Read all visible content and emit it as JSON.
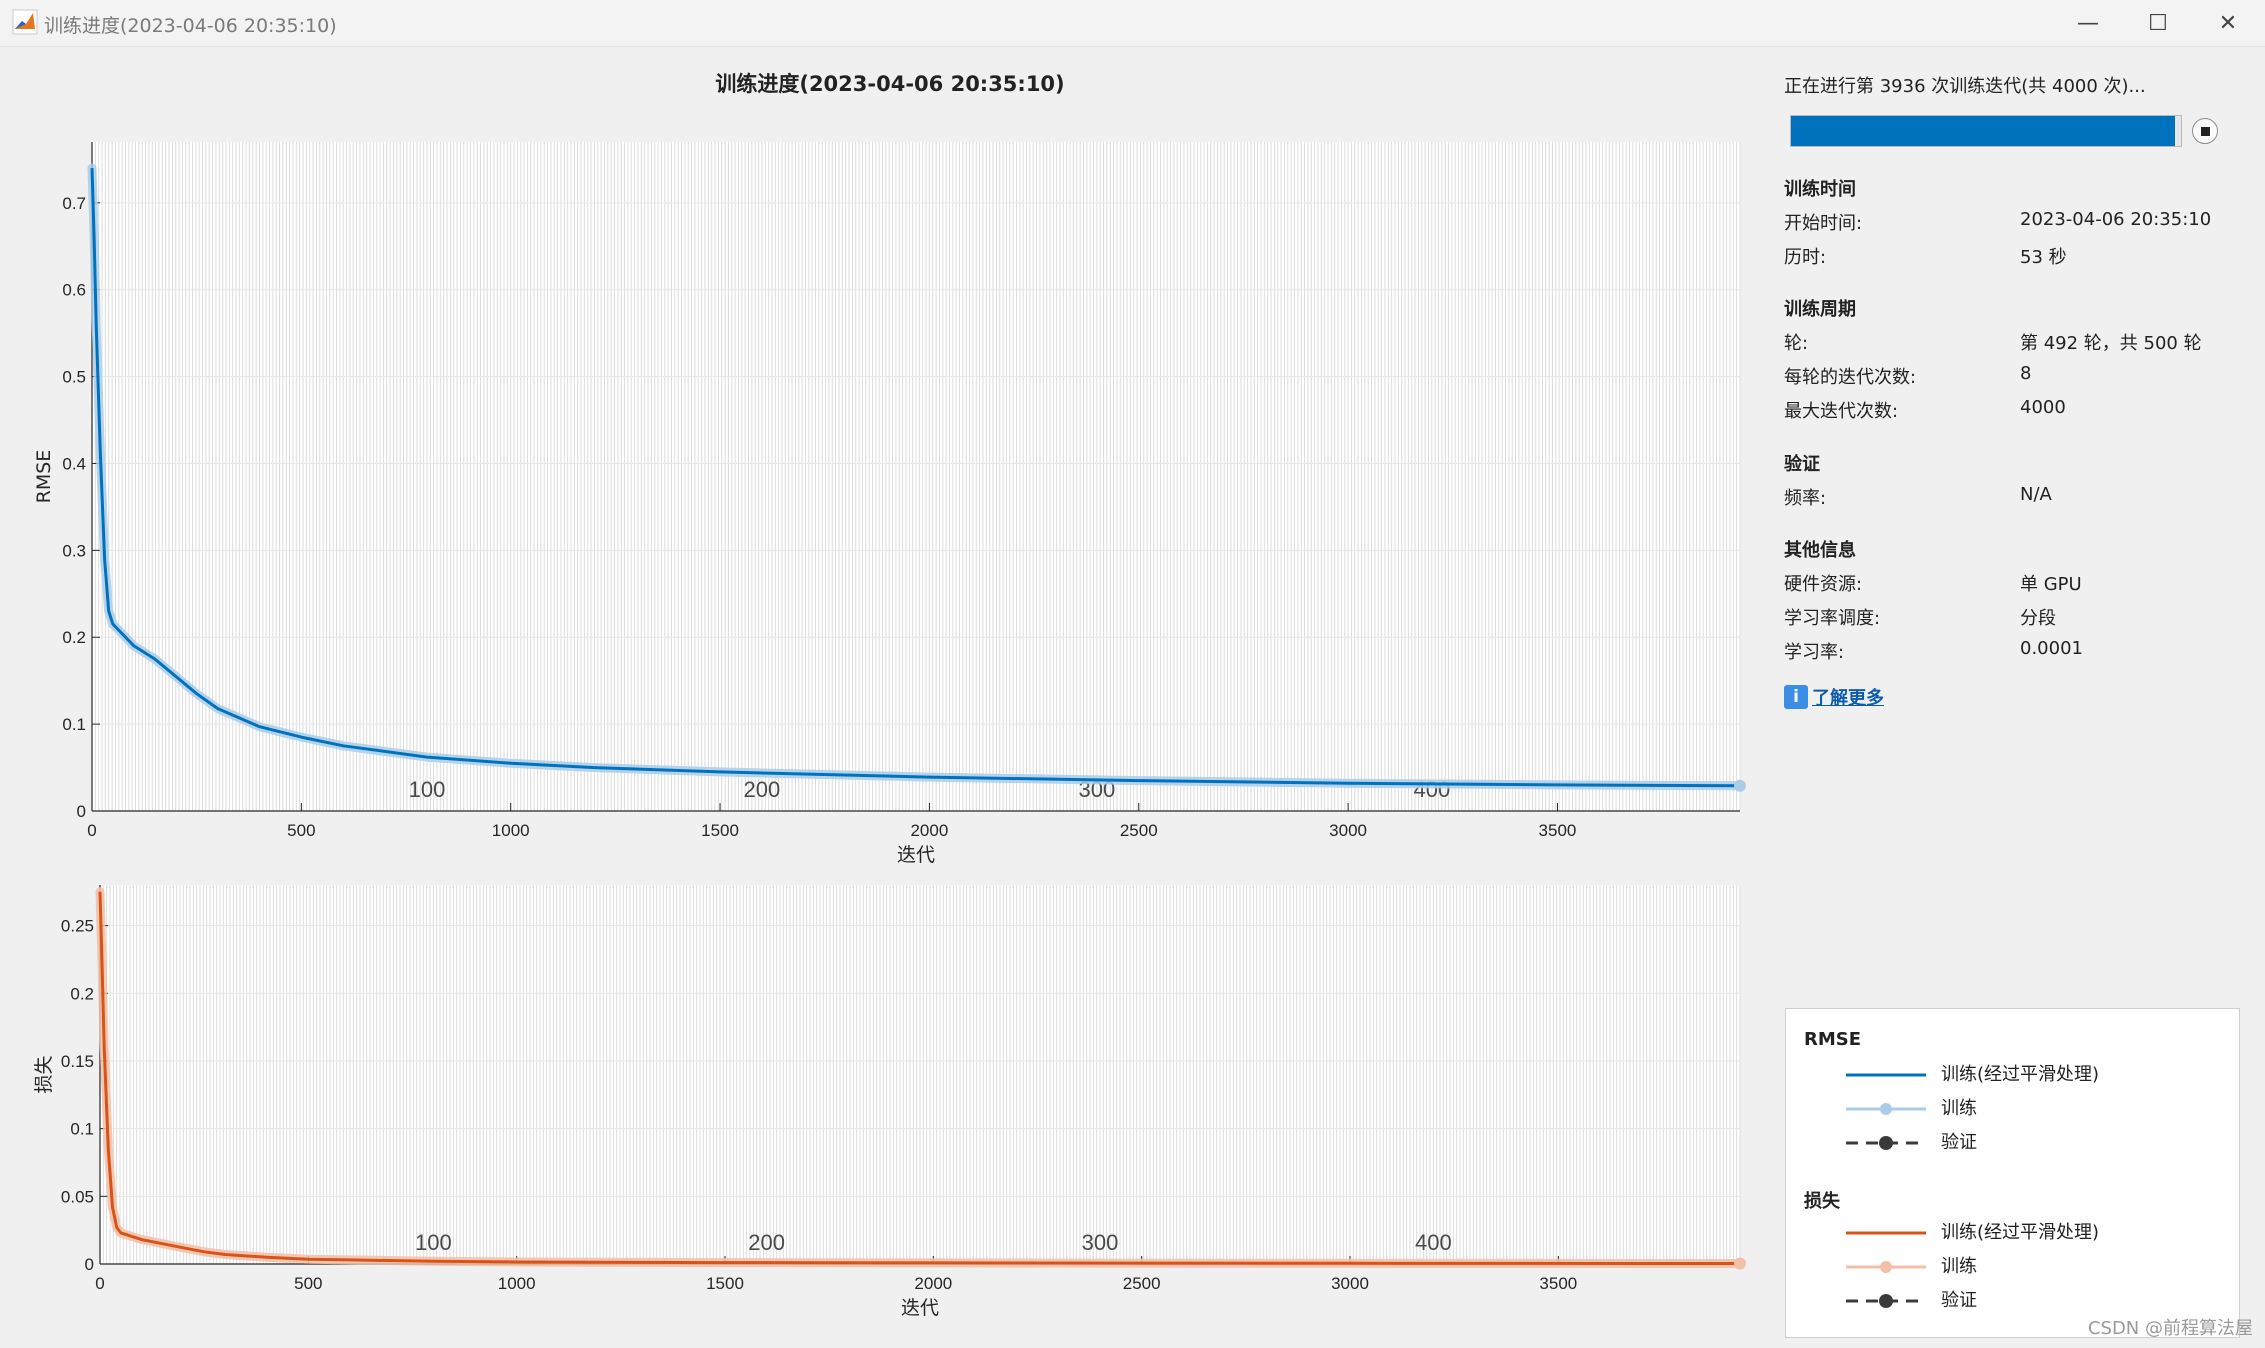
{
  "window": {
    "title": "训练进度(2023-04-06 20:35:10)",
    "min_glyph": "—",
    "max_glyph": "☐",
    "close_glyph": "✕"
  },
  "panel": {
    "progress_text": "正在进行第 3936 次训练迭代(共 4000 次)...",
    "progress_value": 0.984,
    "sections": [
      {
        "heading": "训练时间",
        "rows": [
          {
            "label": "开始时间:",
            "value": "2023-04-06 20:35:10"
          },
          {
            "label": "历时:",
            "value": "53 秒"
          }
        ]
      },
      {
        "heading": "训练周期",
        "rows": [
          {
            "label": "轮:",
            "value": "第 492 轮，共 500 轮"
          },
          {
            "label": "每轮的迭代次数:",
            "value": "8"
          },
          {
            "label": "最大迭代次数:",
            "value": "4000"
          }
        ]
      },
      {
        "heading": "验证",
        "rows": [
          {
            "label": "频率:",
            "value": "N/A"
          }
        ]
      },
      {
        "heading": "其他信息",
        "rows": [
          {
            "label": "硬件资源:",
            "value": "单 GPU"
          },
          {
            "label": "学习率调度:",
            "value": "分段"
          },
          {
            "label": "学习率:",
            "value": "0.0001"
          }
        ]
      }
    ],
    "learn_more_icon": "info-icon",
    "learn_more": "了解更多"
  },
  "legend": {
    "groups": [
      {
        "heading": "RMSE",
        "items": [
          {
            "label": "训练(经过平滑处理)",
            "style": "line",
            "color": "#0072bd"
          },
          {
            "label": "训练",
            "style": "line-marker",
            "color": "#a9cde9"
          },
          {
            "label": "验证",
            "style": "dash-marker",
            "color": "#3a3a3a"
          }
        ]
      },
      {
        "heading": "损失",
        "items": [
          {
            "label": "训练(经过平滑处理)",
            "style": "line",
            "color": "#d95319"
          },
          {
            "label": "训练",
            "style": "line-marker",
            "color": "#f2bfa7"
          },
          {
            "label": "验证",
            "style": "dash-marker",
            "color": "#3a3a3a"
          }
        ]
      }
    ]
  },
  "watermark": "CSDN @前程算法屋",
  "chart_data": [
    {
      "type": "line",
      "title": "训练进度(2023-04-06 20:35:10)",
      "xlabel": "迭代",
      "ylabel": "RMSE",
      "xlim": [
        0,
        3936
      ],
      "ylim": [
        0,
        0.77
      ],
      "xticks": [
        0,
        500,
        1000,
        1500,
        2000,
        2500,
        3000,
        3500
      ],
      "yticks": [
        0,
        0.1,
        0.2,
        0.3,
        0.4,
        0.5,
        0.6,
        0.7
      ],
      "ytick_labels": [
        "0",
        "0.1",
        "0.2",
        "0.3",
        "0.4",
        "0.5",
        "0.6",
        "0.7"
      ],
      "epoch_labels": [
        {
          "x": 800,
          "label": "100"
        },
        {
          "x": 1600,
          "label": "200"
        },
        {
          "x": 2400,
          "label": "300"
        },
        {
          "x": 3200,
          "label": "400"
        }
      ],
      "epoch_gridlines_every": 8,
      "grid": true,
      "series": [
        {
          "name": "训练(经过平滑处理)",
          "color": "#0072bd",
          "x": [
            0,
            5,
            10,
            20,
            30,
            40,
            50,
            60,
            80,
            100,
            150,
            200,
            250,
            300,
            400,
            500,
            600,
            800,
            1000,
            1200,
            1500,
            2000,
            2500,
            3000,
            3500,
            3936
          ],
          "values": [
            0.74,
            0.66,
            0.56,
            0.41,
            0.29,
            0.23,
            0.215,
            0.21,
            0.2,
            0.19,
            0.175,
            0.155,
            0.135,
            0.118,
            0.097,
            0.085,
            0.075,
            0.062,
            0.055,
            0.05,
            0.045,
            0.039,
            0.035,
            0.032,
            0.03,
            0.029
          ]
        },
        {
          "name": "训练",
          "color": "#a9cde9",
          "x": [
            0,
            5,
            10,
            20,
            30,
            40,
            50,
            60,
            80,
            100,
            150,
            200,
            250,
            300,
            400,
            500,
            600,
            800,
            1000,
            1200,
            1500,
            2000,
            2500,
            3000,
            3500,
            3936
          ],
          "values": [
            0.74,
            0.66,
            0.56,
            0.41,
            0.29,
            0.23,
            0.215,
            0.21,
            0.2,
            0.19,
            0.175,
            0.155,
            0.135,
            0.118,
            0.097,
            0.085,
            0.075,
            0.062,
            0.055,
            0.05,
            0.045,
            0.039,
            0.035,
            0.032,
            0.03,
            0.029
          ]
        }
      ]
    },
    {
      "type": "line",
      "xlabel": "迭代",
      "ylabel": "损失",
      "xlim": [
        0,
        3936
      ],
      "ylim": [
        0,
        0.28
      ],
      "xticks": [
        0,
        500,
        1000,
        1500,
        2000,
        2500,
        3000,
        3500
      ],
      "yticks": [
        0,
        0.05,
        0.1,
        0.15,
        0.2,
        0.25
      ],
      "ytick_labels": [
        "0",
        "0.05",
        "0.1",
        "0.15",
        "0.2",
        "0.25"
      ],
      "epoch_labels": [
        {
          "x": 800,
          "label": "100"
        },
        {
          "x": 1600,
          "label": "200"
        },
        {
          "x": 2400,
          "label": "300"
        },
        {
          "x": 3200,
          "label": "400"
        }
      ],
      "epoch_gridlines_every": 8,
      "grid": true,
      "series": [
        {
          "name": "训练(经过平滑处理)",
          "color": "#d95319",
          "x": [
            0,
            5,
            10,
            20,
            30,
            40,
            50,
            60,
            80,
            100,
            150,
            200,
            250,
            300,
            400,
            500,
            600,
            800,
            1000,
            1500,
            2000,
            3000,
            3936
          ],
          "values": [
            0.275,
            0.22,
            0.16,
            0.085,
            0.042,
            0.027,
            0.023,
            0.022,
            0.02,
            0.018,
            0.015,
            0.012,
            0.009,
            0.007,
            0.005,
            0.0035,
            0.003,
            0.002,
            0.0015,
            0.001,
            0.0008,
            0.0005,
            0.0004
          ]
        },
        {
          "name": "训练",
          "color": "#f2bfa7",
          "x": [
            0,
            5,
            10,
            20,
            30,
            40,
            50,
            60,
            80,
            100,
            150,
            200,
            250,
            300,
            400,
            500,
            600,
            800,
            1000,
            1500,
            2000,
            3000,
            3936
          ],
          "values": [
            0.275,
            0.22,
            0.16,
            0.085,
            0.042,
            0.027,
            0.023,
            0.022,
            0.02,
            0.018,
            0.015,
            0.012,
            0.009,
            0.007,
            0.005,
            0.0035,
            0.003,
            0.002,
            0.0015,
            0.001,
            0.0008,
            0.0005,
            0.0004
          ]
        }
      ]
    }
  ]
}
